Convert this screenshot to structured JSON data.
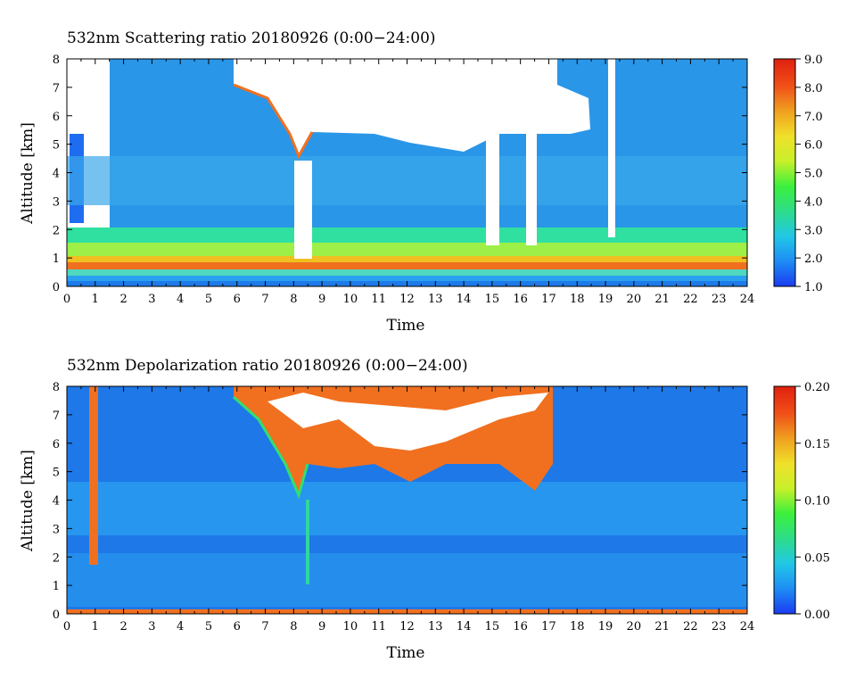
{
  "chart_data": [
    {
      "type": "heatmap",
      "title": "532nm Scattering ratio  20180926 (0:00−24:00)",
      "xlabel": "Time",
      "ylabel": "Altitude [km]",
      "xlim": [
        0,
        24
      ],
      "ylim": [
        0,
        8
      ],
      "x_ticks": [
        "0",
        "1",
        "2",
        "3",
        "4",
        "5",
        "6",
        "7",
        "8",
        "9",
        "10",
        "11",
        "12",
        "13",
        "14",
        "15",
        "16",
        "17",
        "18",
        "19",
        "20",
        "21",
        "22",
        "23",
        "24"
      ],
      "y_ticks": [
        "0",
        "1",
        "2",
        "3",
        "4",
        "5",
        "6",
        "7",
        "8"
      ],
      "colorbar": {
        "range": [
          1.0,
          9.0
        ],
        "ticks": [
          "1.0",
          "2.0",
          "3.0",
          "4.0",
          "5.0",
          "6.0",
          "7.0",
          "8.0",
          "9.0"
        ],
        "colors": [
          "#1a3cf0",
          "#1e8cf5",
          "#21c8e6",
          "#2ddc8a",
          "#3cf03c",
          "#c8f02a",
          "#f0e02a",
          "#f0a020",
          "#f05018",
          "#e02010"
        ]
      },
      "features": [
        {
          "kind": "boundary_layer",
          "x": [
            0,
            24
          ],
          "y": [
            0.3,
            2.0
          ],
          "value": 5.5
        },
        {
          "kind": "surface_band",
          "x": [
            0,
            24
          ],
          "y": [
            0.0,
            0.3
          ],
          "value": 2.5
        },
        {
          "kind": "cloud",
          "x": [
            6,
            18.5
          ],
          "y": [
            4.5,
            8
          ],
          "value": ">9"
        },
        {
          "kind": "clear_sky",
          "x": [
            0,
            1.5
          ],
          "y": [
            2,
            8
          ],
          "value": "saturated"
        }
      ]
    },
    {
      "type": "heatmap",
      "title": "532nm Depolarization ratio  20180926 (0:00−24:00)",
      "xlabel": "Time",
      "ylabel": "Altitude [km]",
      "xlim": [
        0,
        24
      ],
      "ylim": [
        0,
        8
      ],
      "x_ticks": [
        "0",
        "1",
        "2",
        "3",
        "4",
        "5",
        "6",
        "7",
        "8",
        "9",
        "10",
        "11",
        "12",
        "13",
        "14",
        "15",
        "16",
        "17",
        "18",
        "19",
        "20",
        "21",
        "22",
        "23",
        "24"
      ],
      "y_ticks": [
        "0",
        "1",
        "2",
        "3",
        "4",
        "5",
        "6",
        "7",
        "8"
      ],
      "colorbar": {
        "range": [
          0.0,
          0.2
        ],
        "ticks": [
          "0.00",
          "0.05",
          "0.10",
          "0.15",
          "0.20"
        ],
        "colors": [
          "#1a3cf0",
          "#1e8cf5",
          "#21c8e6",
          "#2ddc8a",
          "#3cf03c",
          "#c8f02a",
          "#f0e02a",
          "#f0a020",
          "#f05018",
          "#e02010"
        ]
      },
      "features": [
        {
          "kind": "background",
          "x": [
            0,
            24
          ],
          "y": [
            0,
            8
          ],
          "value": 0.03
        },
        {
          "kind": "cloud",
          "x": [
            6,
            17
          ],
          "y": [
            4.5,
            8
          ],
          "value": 0.18
        },
        {
          "kind": "surface_band",
          "x": [
            0,
            24
          ],
          "y": [
            0.0,
            0.1
          ],
          "value": 0.18
        }
      ]
    }
  ]
}
